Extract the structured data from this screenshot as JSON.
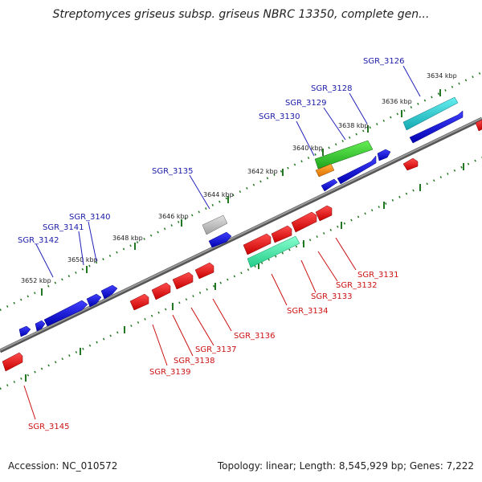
{
  "title": "Streptomyces griseus subsp. griseus NBRC 13350, complete gen...",
  "footer": {
    "accession": "Accession: NC_010572",
    "stats": "Topology: linear; Length: 8,545,929 bp; Genes: 7,222"
  },
  "colors": {
    "forward": "#1010dd",
    "reverse": "#ee1111",
    "backbone": "#888888",
    "ticks": "#227722",
    "forward_label": "#1a1aa8",
    "reverse_label": "#cc1111"
  },
  "ticks": [
    "3634 kbp",
    "3636 kbp",
    "3638 kbp",
    "3640 kbp",
    "3642 kbp",
    "3644 kbp",
    "3646 kbp",
    "3648 kbp",
    "3650 kbp",
    "3652 kbp"
  ],
  "forward_labels": [
    "SGR_3126",
    "SGR_3128",
    "SGR_3129",
    "SGR_3130",
    "SGR_3135",
    "SGR_3140",
    "SGR_3141",
    "SGR_3142"
  ],
  "reverse_labels": [
    "SGR_3131",
    "SGR_3132",
    "SGR_3133",
    "SGR_3134",
    "SGR_3136",
    "SGR_3137",
    "SGR_3138",
    "SGR_3139",
    "SGR_3145"
  ]
}
